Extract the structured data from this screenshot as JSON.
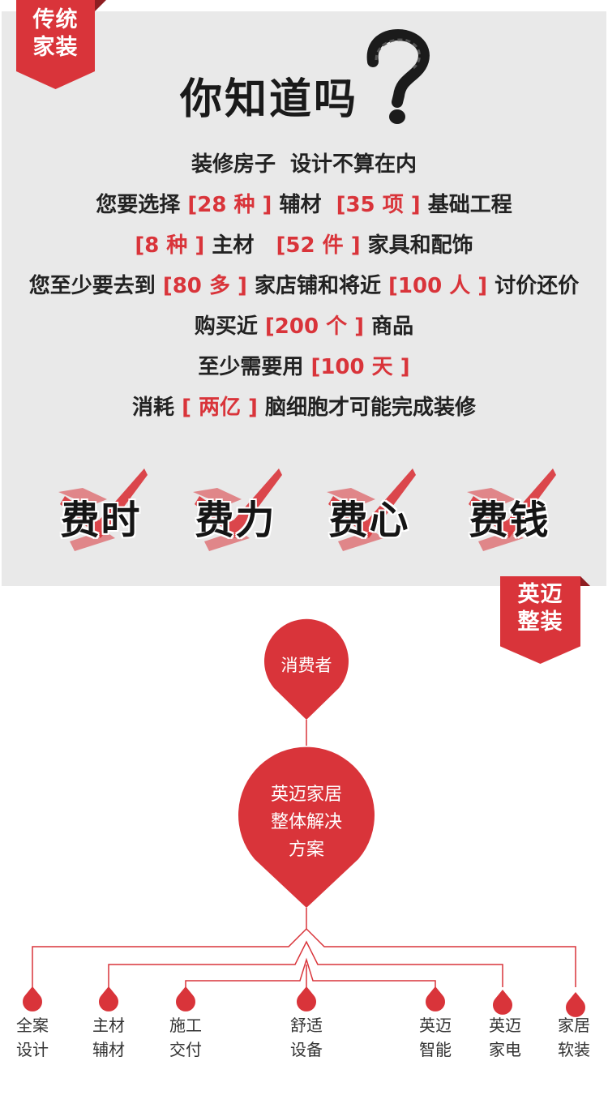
{
  "ribbons": {
    "traditional": [
      "传统",
      "家装"
    ],
    "yingmai": [
      "英迈",
      "整装"
    ]
  },
  "headline": "你知道吗",
  "intro_lines": [
    [
      {
        "t": "装修房子  设计不算在内",
        "hl": false
      }
    ],
    [
      {
        "t": "您要选择 ",
        "hl": false
      },
      {
        "t": "[28 种 ]",
        "hl": true
      },
      {
        "t": " 辅材  ",
        "hl": false
      },
      {
        "t": "[35 项 ]",
        "hl": true
      },
      {
        "t": " 基础工程",
        "hl": false
      }
    ],
    [
      {
        "t": "[8 种 ]",
        "hl": true
      },
      {
        "t": " 主材   ",
        "hl": false
      },
      {
        "t": "[52 件 ]",
        "hl": true
      },
      {
        "t": " 家具和配饰",
        "hl": false
      }
    ],
    [
      {
        "t": "您至少要去到 ",
        "hl": false
      },
      {
        "t": "[80 多 ]",
        "hl": true
      },
      {
        "t": " 家店铺和将近 ",
        "hl": false
      },
      {
        "t": "[100 人 ]",
        "hl": true
      },
      {
        "t": " 讨价还价",
        "hl": false
      }
    ],
    [
      {
        "t": "购买近 ",
        "hl": false
      },
      {
        "t": "[200 个 ]",
        "hl": true
      },
      {
        "t": " 商品",
        "hl": false
      }
    ],
    [
      {
        "t": "至少需要用 ",
        "hl": false
      },
      {
        "t": "[100 天 ]",
        "hl": true
      }
    ],
    [
      {
        "t": "消耗 ",
        "hl": false
      },
      {
        "t": "[ 两亿 ]",
        "hl": true
      },
      {
        "t": " 脑细胞才可能完成装修",
        "hl": false
      }
    ]
  ],
  "stamps": [
    "费时",
    "费力",
    "费心",
    "费钱"
  ],
  "consumer_label": "消费者",
  "solution_label": [
    "英迈家居",
    "整体解决",
    "方案"
  ],
  "branches": [
    [
      "全案",
      "设计"
    ],
    [
      "主材",
      "辅材"
    ],
    [
      "施工",
      "交付"
    ],
    [
      "舒适",
      "设备"
    ],
    [
      "英迈",
      "智能"
    ],
    [
      "英迈",
      "家电"
    ],
    [
      "家居",
      "软装"
    ]
  ],
  "colors": {
    "accent": "#d9343a",
    "panel": "#e9e9e9",
    "dark_fold": "#8e1e22"
  }
}
